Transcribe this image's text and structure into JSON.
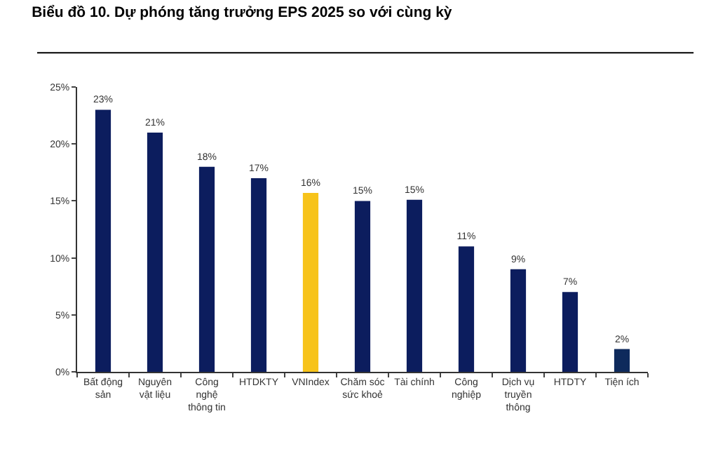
{
  "chart_data": {
    "type": "bar",
    "title": "Biểu đồ 10. Dự phóng tăng trưởng EPS 2025 so với cùng kỳ",
    "categories": [
      "Bất động\nsản",
      "Nguyên\nvật liệu",
      "Công\nnghệ\nthông tin",
      "HTDKTY",
      "VNIndex",
      "Chăm sóc\nsức khoẻ",
      "Tài chính",
      "Công\nnghiệp",
      "Dịch vụ\ntruyền\nthông",
      "HTDTY",
      "Tiện ích"
    ],
    "values": [
      23,
      21,
      18,
      17,
      15.7,
      15,
      15.1,
      11,
      9,
      7,
      2
    ],
    "value_labels": [
      "23%",
      "21%",
      "18%",
      "17%",
      "16%",
      "15%",
      "15%",
      "11%",
      "9%",
      "7%",
      "2%"
    ],
    "colors": [
      "#0c1d5e",
      "#0c1d5e",
      "#0c1d5e",
      "#0c1d5e",
      "#f7c31a",
      "#0c1d5e",
      "#0c1d5e",
      "#0c1d5e",
      "#0c1d5e",
      "#0c1d5e",
      "#0e2a5c"
    ],
    "ylim": [
      0,
      25
    ],
    "yticks": [
      {
        "value": 0,
        "label": "0%"
      },
      {
        "value": 5,
        "label": "5%"
      },
      {
        "value": 10,
        "label": "10%"
      },
      {
        "value": 15,
        "label": "15%"
      },
      {
        "value": 20,
        "label": "20%"
      },
      {
        "value": 25,
        "label": "25%"
      }
    ],
    "grid": false,
    "legend": false
  }
}
